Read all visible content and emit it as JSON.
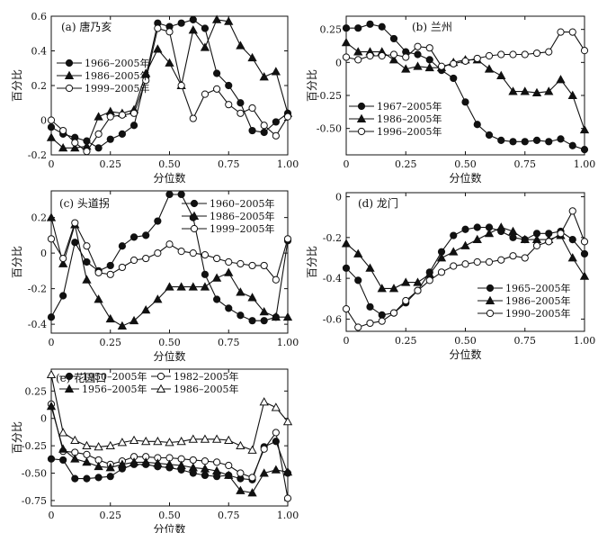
{
  "chart_data": [
    {
      "type": "line",
      "title": "(a) 唐乃亥",
      "xlabel": "分位数",
      "ylabel": "百分比",
      "xlim": [
        0,
        1
      ],
      "ylim": [
        -0.2,
        0.6
      ],
      "xticks": [
        "0",
        "0.25",
        "0.50",
        "0.75",
        "1.00"
      ],
      "xtick_values": [
        0,
        0.25,
        0.5,
        0.75,
        1.0
      ],
      "yticks": [
        "-0.2",
        "0",
        "0.2",
        "0.4",
        "0.6"
      ],
      "ytick_values": [
        -0.2,
        0,
        0.2,
        0.4,
        0.6
      ],
      "legend_position": "left",
      "series": [
        {
          "name": "1966–2005年",
          "marker": "filled-circle",
          "x": [
            0,
            0.05,
            0.1,
            0.15,
            0.2,
            0.25,
            0.3,
            0.35,
            0.4,
            0.45,
            0.5,
            0.55,
            0.6,
            0.65,
            0.7,
            0.75,
            0.8,
            0.85,
            0.9,
            0.95,
            1.0
          ],
          "y": [
            -0.04,
            -0.08,
            -0.1,
            -0.12,
            -0.16,
            -0.11,
            -0.08,
            -0.03,
            0.25,
            0.56,
            0.54,
            0.56,
            0.58,
            0.53,
            0.27,
            0.2,
            0.1,
            -0.06,
            -0.07,
            -0.01,
            0.04
          ]
        },
        {
          "name": "1986–2005年",
          "marker": "filled-triangle",
          "x": [
            0,
            0.05,
            0.1,
            0.15,
            0.2,
            0.25,
            0.3,
            0.35,
            0.4,
            0.45,
            0.5,
            0.55,
            0.6,
            0.65,
            0.7,
            0.75,
            0.8,
            0.85,
            0.9,
            0.95,
            1.0
          ],
          "y": [
            -0.1,
            -0.16,
            -0.16,
            -0.15,
            0.02,
            0.05,
            0.04,
            0.06,
            0.27,
            0.41,
            0.33,
            0.2,
            0.52,
            0.42,
            0.58,
            0.57,
            0.43,
            0.36,
            0.25,
            0.28,
            0.04
          ]
        },
        {
          "name": "1999–2005年",
          "marker": "open-circle",
          "x": [
            0,
            0.05,
            0.1,
            0.15,
            0.2,
            0.25,
            0.3,
            0.35,
            0.4,
            0.45,
            0.5,
            0.55,
            0.6,
            0.65,
            0.7,
            0.75,
            0.8,
            0.85,
            0.9,
            0.95,
            1.0
          ],
          "y": [
            0,
            -0.06,
            -0.13,
            -0.18,
            -0.08,
            0.02,
            0.03,
            0.04,
            0.23,
            0.53,
            0.51,
            0.2,
            0.01,
            0.15,
            0.18,
            0.09,
            0.04,
            0.07,
            -0.03,
            -0.09,
            0.02
          ]
        }
      ]
    },
    {
      "type": "line",
      "title": "(b) 兰州",
      "xlabel": "分位数",
      "ylabel": "百分比",
      "xlim": [
        0,
        1
      ],
      "ylim": [
        -0.7,
        0.35
      ],
      "xticks": [
        "0",
        "0.25",
        "0.50",
        "0.75",
        "1.00"
      ],
      "xtick_values": [
        0,
        0.25,
        0.5,
        0.75,
        1.0
      ],
      "yticks": [
        "0.25",
        "0",
        "-0.25",
        "-0.50"
      ],
      "ytick_values": [
        0.25,
        0,
        -0.25,
        -0.5
      ],
      "legend_position": "bottom-left",
      "series": [
        {
          "name": "1967–2005年",
          "marker": "filled-circle",
          "x": [
            0,
            0.05,
            0.1,
            0.15,
            0.2,
            0.25,
            0.3,
            0.35,
            0.4,
            0.45,
            0.5,
            0.55,
            0.6,
            0.65,
            0.7,
            0.75,
            0.8,
            0.85,
            0.9,
            0.95,
            1.0
          ],
          "y": [
            0.26,
            0.26,
            0.29,
            0.27,
            0.18,
            0.08,
            0.06,
            0.02,
            -0.06,
            -0.12,
            -0.3,
            -0.47,
            -0.55,
            -0.59,
            -0.6,
            -0.6,
            -0.59,
            -0.6,
            -0.58,
            -0.63,
            -0.66
          ]
        },
        {
          "name": "1986–2005年",
          "marker": "filled-triangle",
          "x": [
            0,
            0.05,
            0.1,
            0.15,
            0.2,
            0.25,
            0.3,
            0.35,
            0.4,
            0.45,
            0.5,
            0.55,
            0.6,
            0.65,
            0.7,
            0.75,
            0.8,
            0.85,
            0.9,
            0.95,
            1.0
          ],
          "y": [
            0.15,
            0.08,
            0.08,
            0.08,
            0.02,
            -0.05,
            -0.03,
            -0.04,
            -0.04,
            0.0,
            0.02,
            0.02,
            -0.05,
            -0.1,
            -0.22,
            -0.22,
            -0.23,
            -0.22,
            -0.13,
            -0.25,
            -0.51
          ]
        },
        {
          "name": "1996–2005年",
          "marker": "open-circle",
          "x": [
            0,
            0.05,
            0.1,
            0.15,
            0.2,
            0.25,
            0.3,
            0.35,
            0.4,
            0.45,
            0.5,
            0.55,
            0.6,
            0.65,
            0.7,
            0.75,
            0.8,
            0.85,
            0.9,
            0.95,
            1.0
          ],
          "y": [
            0.04,
            0.02,
            0.05,
            0.05,
            0.06,
            0.04,
            0.12,
            0.11,
            -0.03,
            -0.01,
            0.01,
            0.03,
            0.05,
            0.06,
            0.06,
            0.06,
            0.07,
            0.08,
            0.23,
            0.23,
            0.09
          ]
        }
      ]
    },
    {
      "type": "line",
      "title": "(c) 头道拐",
      "xlabel": "分位数",
      "ylabel": "百分比",
      "xlim": [
        0,
        1
      ],
      "ylim": [
        -0.45,
        0.35
      ],
      "xticks": [
        "0",
        "0.25",
        "0.50",
        "0.75",
        "1.00"
      ],
      "xtick_values": [
        0,
        0.25,
        0.5,
        0.75,
        1.0
      ],
      "yticks": [
        "0.2",
        "0",
        "-0.2",
        "-0.4"
      ],
      "ytick_values": [
        0.2,
        0,
        -0.2,
        -0.4
      ],
      "legend_position": "top-right",
      "series": [
        {
          "name": "1960–2005年",
          "marker": "filled-circle",
          "x": [
            0,
            0.05,
            0.1,
            0.15,
            0.2,
            0.25,
            0.3,
            0.35,
            0.4,
            0.45,
            0.5,
            0.55,
            0.6,
            0.65,
            0.7,
            0.75,
            0.8,
            0.85,
            0.9,
            0.95,
            1.0
          ],
          "y": [
            -0.36,
            -0.24,
            0.06,
            -0.05,
            -0.1,
            -0.07,
            0.04,
            0.09,
            0.1,
            0.18,
            0.33,
            0.33,
            0.2,
            -0.12,
            -0.26,
            -0.31,
            -0.35,
            -0.38,
            -0.38,
            -0.36,
            0.07
          ]
        },
        {
          "name": "1986–2005年",
          "marker": "filled-triangle",
          "x": [
            0,
            0.05,
            0.1,
            0.15,
            0.2,
            0.25,
            0.3,
            0.35,
            0.4,
            0.45,
            0.5,
            0.55,
            0.6,
            0.65,
            0.7,
            0.75,
            0.8,
            0.85,
            0.9,
            0.95,
            1.0
          ],
          "y": [
            0.2,
            -0.06,
            0.16,
            -0.15,
            -0.26,
            -0.37,
            -0.41,
            -0.38,
            -0.32,
            -0.26,
            -0.19,
            -0.19,
            -0.19,
            -0.19,
            -0.14,
            -0.11,
            -0.22,
            -0.25,
            -0.33,
            -0.36,
            -0.36
          ]
        },
        {
          "name": "1999–2005年",
          "marker": "open-circle",
          "x": [
            0,
            0.05,
            0.1,
            0.15,
            0.2,
            0.25,
            0.3,
            0.35,
            0.4,
            0.45,
            0.5,
            0.55,
            0.6,
            0.65,
            0.7,
            0.75,
            0.8,
            0.85,
            0.9,
            0.95,
            1.0
          ],
          "y": [
            0.08,
            -0.03,
            0.17,
            0.04,
            -0.11,
            -0.12,
            -0.08,
            -0.04,
            -0.03,
            0.0,
            0.05,
            0.01,
            0.0,
            -0.01,
            -0.03,
            -0.05,
            -0.06,
            -0.07,
            -0.07,
            -0.15,
            0.08
          ]
        }
      ]
    },
    {
      "type": "line",
      "title": "(d) 龙门",
      "xlabel": "分位数",
      "ylabel": "百分比",
      "xlim": [
        0,
        1
      ],
      "ylim": [
        -0.66,
        0.02
      ],
      "xticks": [
        "0",
        "0.25",
        "0.50",
        "0.75",
        "1.00"
      ],
      "xtick_values": [
        0,
        0.25,
        0.5,
        0.75,
        1.0
      ],
      "yticks": [
        "0",
        "-0.2",
        "-0.4",
        "-0.6"
      ],
      "ytick_values": [
        0,
        -0.2,
        -0.4,
        -0.6
      ],
      "legend_position": "bottom-right",
      "series": [
        {
          "name": "1965–2005年",
          "marker": "filled-circle",
          "x": [
            0,
            0.05,
            0.1,
            0.15,
            0.2,
            0.25,
            0.3,
            0.35,
            0.4,
            0.45,
            0.5,
            0.55,
            0.6,
            0.65,
            0.7,
            0.75,
            0.8,
            0.85,
            0.9,
            0.95,
            1.0
          ],
          "y": [
            -0.35,
            -0.41,
            -0.54,
            -0.58,
            -0.57,
            -0.52,
            -0.46,
            -0.37,
            -0.27,
            -0.19,
            -0.16,
            -0.15,
            -0.15,
            -0.17,
            -0.2,
            -0.21,
            -0.18,
            -0.18,
            -0.17,
            -0.21,
            -0.28
          ]
        },
        {
          "name": "1986–2005年",
          "marker": "filled-triangle",
          "x": [
            0,
            0.05,
            0.1,
            0.15,
            0.2,
            0.25,
            0.3,
            0.35,
            0.4,
            0.45,
            0.5,
            0.55,
            0.6,
            0.65,
            0.7,
            0.75,
            0.8,
            0.85,
            0.9,
            0.95,
            1.0
          ],
          "y": [
            -0.23,
            -0.28,
            -0.35,
            -0.45,
            -0.45,
            -0.42,
            -0.42,
            -0.38,
            -0.3,
            -0.27,
            -0.24,
            -0.21,
            -0.18,
            -0.15,
            -0.17,
            -0.21,
            -0.21,
            -0.21,
            -0.19,
            -0.3,
            -0.39
          ]
        },
        {
          "name": "1990–2005年",
          "marker": "open-circle",
          "x": [
            0,
            0.05,
            0.1,
            0.15,
            0.2,
            0.25,
            0.3,
            0.35,
            0.4,
            0.45,
            0.5,
            0.55,
            0.6,
            0.65,
            0.7,
            0.75,
            0.8,
            0.85,
            0.9,
            0.95,
            1.0
          ],
          "y": [
            -0.55,
            -0.64,
            -0.62,
            -0.61,
            -0.57,
            -0.51,
            -0.46,
            -0.41,
            -0.37,
            -0.34,
            -0.33,
            -0.32,
            -0.32,
            -0.31,
            -0.29,
            -0.3,
            -0.24,
            -0.22,
            -0.18,
            -0.07,
            -0.22
          ]
        }
      ]
    },
    {
      "type": "line",
      "title": "(e) 花园口",
      "xlabel": "分位数",
      "ylabel": "百分比",
      "xlim": [
        0,
        1
      ],
      "ylim": [
        -0.8,
        0.45
      ],
      "xticks": [
        "0",
        "0.25",
        "0.50",
        "0.75",
        "1.00"
      ],
      "xtick_values": [
        0,
        0.25,
        0.5,
        0.75,
        1.0
      ],
      "yticks": [
        "0.25",
        "0",
        "-0.25",
        "-0.50",
        "-0.75"
      ],
      "ytick_values": [
        0.25,
        0,
        -0.25,
        -0.5,
        -0.75
      ],
      "legend_position": "top",
      "series": [
        {
          "name": "1950–2005年",
          "marker": "filled-circle",
          "x": [
            0,
            0.05,
            0.1,
            0.15,
            0.2,
            0.25,
            0.3,
            0.35,
            0.4,
            0.45,
            0.5,
            0.55,
            0.6,
            0.65,
            0.7,
            0.75,
            0.8,
            0.85,
            0.9,
            0.95,
            1.0
          ],
          "y": [
            -0.37,
            -0.38,
            -0.55,
            -0.55,
            -0.54,
            -0.53,
            -0.46,
            -0.42,
            -0.42,
            -0.44,
            -0.45,
            -0.47,
            -0.5,
            -0.52,
            -0.53,
            -0.52,
            -0.55,
            -0.56,
            -0.26,
            -0.21,
            -0.5
          ]
        },
        {
          "name": "1982–2005年",
          "marker": "open-circle",
          "x": [
            0,
            0.05,
            0.1,
            0.15,
            0.2,
            0.25,
            0.3,
            0.35,
            0.4,
            0.45,
            0.5,
            0.55,
            0.6,
            0.65,
            0.7,
            0.75,
            0.8,
            0.85,
            0.9,
            0.95,
            1.0
          ],
          "y": [
            0.13,
            -0.3,
            -0.31,
            -0.33,
            -0.38,
            -0.42,
            -0.39,
            -0.35,
            -0.35,
            -0.36,
            -0.36,
            -0.37,
            -0.38,
            -0.39,
            -0.4,
            -0.43,
            -0.5,
            -0.54,
            -0.28,
            -0.13,
            -0.73
          ]
        },
        {
          "name": "1956–2005年",
          "marker": "filled-triangle",
          "x": [
            0,
            0.05,
            0.1,
            0.15,
            0.2,
            0.25,
            0.3,
            0.35,
            0.4,
            0.45,
            0.5,
            0.55,
            0.6,
            0.65,
            0.7,
            0.75,
            0.8,
            0.85,
            0.9,
            0.95,
            1.0
          ],
          "y": [
            0.11,
            -0.28,
            -0.37,
            -0.4,
            -0.44,
            -0.45,
            -0.42,
            -0.4,
            -0.4,
            -0.41,
            -0.42,
            -0.43,
            -0.45,
            -0.46,
            -0.48,
            -0.52,
            -0.66,
            -0.68,
            -0.5,
            -0.47,
            -0.49
          ]
        },
        {
          "name": "1986–2005年",
          "marker": "open-triangle",
          "x": [
            0,
            0.05,
            0.1,
            0.15,
            0.2,
            0.25,
            0.3,
            0.35,
            0.4,
            0.45,
            0.5,
            0.55,
            0.6,
            0.65,
            0.7,
            0.75,
            0.8,
            0.85,
            0.9,
            0.95,
            1.0
          ],
          "y": [
            0.4,
            -0.13,
            -0.2,
            -0.25,
            -0.26,
            -0.25,
            -0.22,
            -0.2,
            -0.21,
            -0.21,
            -0.22,
            -0.21,
            -0.19,
            -0.19,
            -0.19,
            -0.2,
            -0.25,
            -0.29,
            0.15,
            0.1,
            -0.03
          ]
        }
      ]
    }
  ]
}
